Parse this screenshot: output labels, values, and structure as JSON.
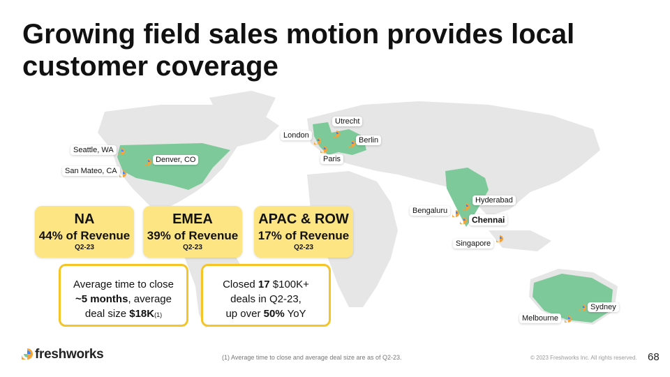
{
  "title": "Growing field sales motion provides local customer coverage",
  "cities": {
    "utrecht": "Utrecht",
    "london": "London",
    "berlin": "Berlin",
    "paris": "Paris",
    "seattle": "Seattle, WA",
    "denver": "Denver, CO",
    "san_mateo": "San Mateo, CA",
    "hyderabad": "Hyderabad",
    "bengaluru": "Bengaluru",
    "chennai": "Chennai",
    "singapore": "Singapore",
    "sydney": "Sydney",
    "melbourne": "Melbourne"
  },
  "regions": [
    {
      "name": "NA",
      "revenue": "44% of Revenue",
      "quarter": "Q2-23"
    },
    {
      "name": "EMEA",
      "revenue": "39% of Revenue",
      "quarter": "Q2-23"
    },
    {
      "name": "APAC & ROW",
      "revenue": "17% of Revenue",
      "quarter": "Q2-23"
    }
  ],
  "stat_left": {
    "line1": "Average time to close",
    "months": "~5 months",
    "after_months": ", average",
    "deal_prefix": "deal size ",
    "deal_size": "$18K",
    "footnote_ref": "(1)"
  },
  "stat_right": {
    "prefix": "Closed ",
    "count": "17",
    "after_count": " $100K+",
    "line2": "deals in Q2-23,",
    "line3_prefix": "up over ",
    "pct": "50%",
    "line3_suffix": " YoY"
  },
  "footnote": "(1) Average time to close and average deal size are as of Q2-23.",
  "copyright": "© 2023 Freshworks Inc. All rights reserved.",
  "page_number": "68",
  "logo_text": "freshworks",
  "colors": {
    "highlight": "#7ec99a",
    "land": "#e6e6e6",
    "region_box": "#fde583",
    "stat_border": "#f5c427"
  },
  "icons": [
    "freshworks-pin-icon",
    "freshworks-logo-icon"
  ]
}
